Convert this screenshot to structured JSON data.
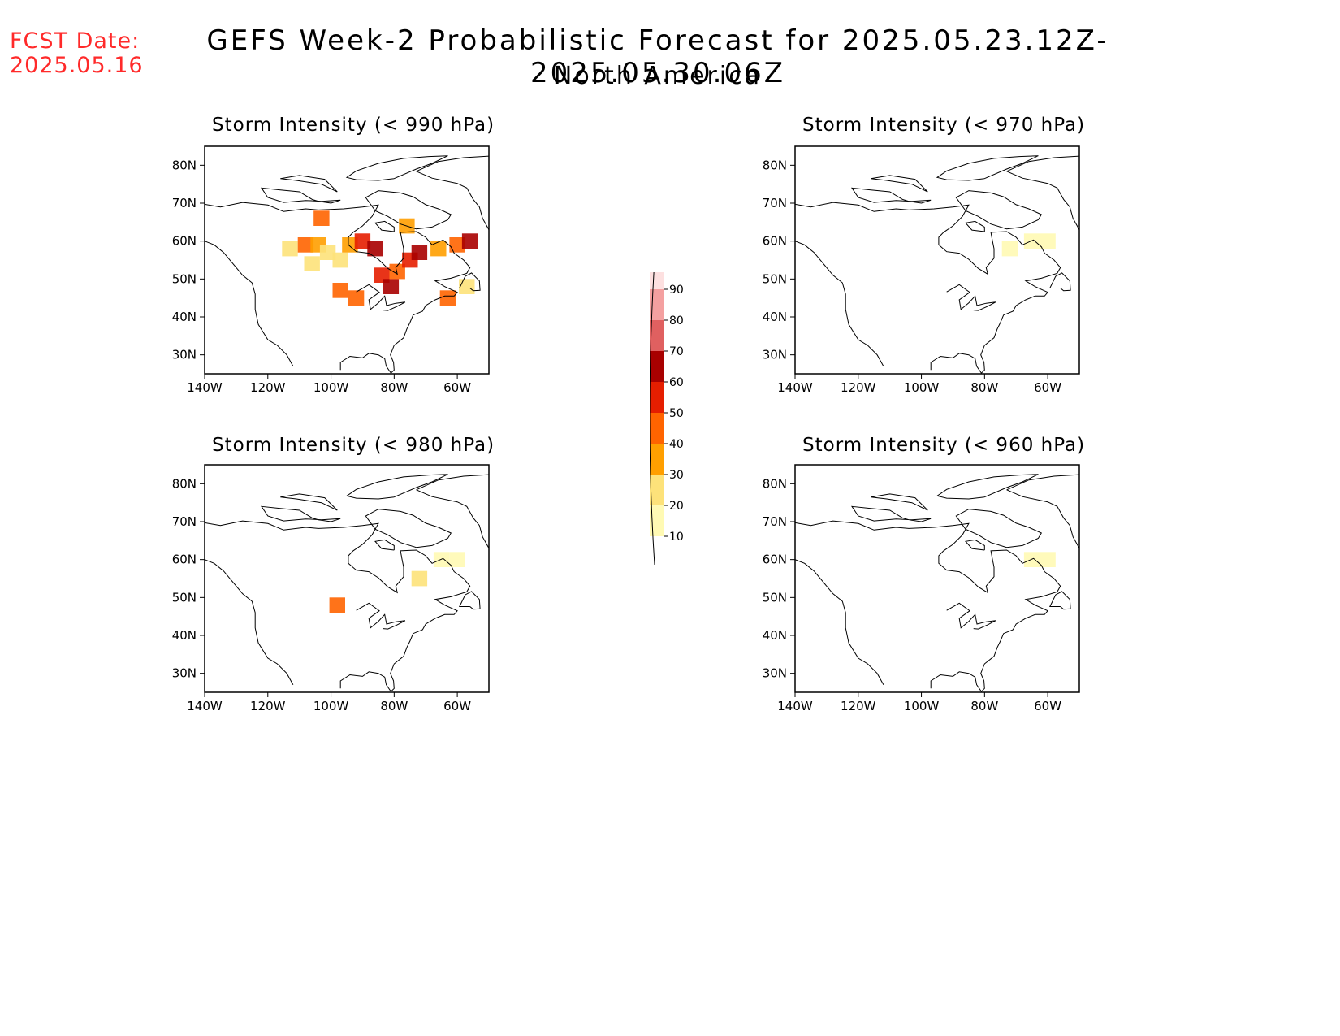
{
  "header": {
    "fcst_label": "FCST Date:",
    "fcst_value": "2025.05.16",
    "title": "GEFS Week-2 Probabilistic Forecast for 2025.05.23.12Z-2025.05.30.06Z",
    "subtitle": "North America"
  },
  "colors": {
    "fcst_text": "#ff2a2a",
    "levels": [
      "#fffab4",
      "#fde27a",
      "#ff9f00",
      "#ff6400",
      "#e51e00",
      "#a80000",
      "#e06060",
      "#f4a0a0",
      "#fde0e0"
    ]
  },
  "colorbar": {
    "labels": [
      "10",
      "20",
      "30",
      "40",
      "50",
      "60",
      "70",
      "80",
      "90"
    ]
  },
  "axes": {
    "lat_labels": [
      "30N",
      "40N",
      "50N",
      "60N",
      "70N",
      "80N"
    ],
    "lon_labels": [
      "140W",
      "120W",
      "100W",
      "80W",
      "60W"
    ]
  },
  "panels": [
    {
      "title": "Storm Intensity (< 990 hPa)"
    },
    {
      "title": "Storm Intensity (< 970 hPa)"
    },
    {
      "title": "Storm Intensity (< 980 hPa)"
    },
    {
      "title": "Storm Intensity (< 960 hPa)"
    }
  ],
  "chart_data": [
    {
      "type": "heatmap",
      "title": "Storm Intensity (< 990 hPa)",
      "xlim": [
        -140,
        -50
      ],
      "ylim": [
        25,
        85
      ],
      "cells": [
        {
          "lon": -113,
          "lat": 58,
          "p": 20
        },
        {
          "lon": -108,
          "lat": 59,
          "p": 40
        },
        {
          "lon": -104,
          "lat": 59,
          "p": 30
        },
        {
          "lon": -101,
          "lat": 57,
          "p": 20
        },
        {
          "lon": -97,
          "lat": 55,
          "p": 20
        },
        {
          "lon": -94,
          "lat": 59,
          "p": 30
        },
        {
          "lon": -90,
          "lat": 60,
          "p": 50
        },
        {
          "lon": -86,
          "lat": 58,
          "p": 60
        },
        {
          "lon": -84,
          "lat": 51,
          "p": 50
        },
        {
          "lon": -81,
          "lat": 48,
          "p": 60
        },
        {
          "lon": -79,
          "lat": 52,
          "p": 40
        },
        {
          "lon": -75,
          "lat": 55,
          "p": 50
        },
        {
          "lon": -72,
          "lat": 57,
          "p": 60
        },
        {
          "lon": -66,
          "lat": 58,
          "p": 30
        },
        {
          "lon": -60,
          "lat": 59,
          "p": 40
        },
        {
          "lon": -56,
          "lat": 60,
          "p": 60
        },
        {
          "lon": -76,
          "lat": 64,
          "p": 30
        },
        {
          "lon": -103,
          "lat": 66,
          "p": 40
        },
        {
          "lon": -106,
          "lat": 54,
          "p": 20
        },
        {
          "lon": -97,
          "lat": 47,
          "p": 40
        },
        {
          "lon": -92,
          "lat": 45,
          "p": 40
        },
        {
          "lon": -63,
          "lat": 45,
          "p": 40
        },
        {
          "lon": -57,
          "lat": 48,
          "p": 20
        }
      ]
    },
    {
      "type": "heatmap",
      "title": "Storm Intensity (< 970 hPa)",
      "xlim": [
        -140,
        -50
      ],
      "ylim": [
        25,
        85
      ],
      "cells": [
        {
          "lon": -65,
          "lat": 60,
          "p": 10
        },
        {
          "lon": -60,
          "lat": 60,
          "p": 10
        },
        {
          "lon": -72,
          "lat": 58,
          "p": 10
        }
      ]
    },
    {
      "type": "heatmap",
      "title": "Storm Intensity (< 980 hPa)",
      "xlim": [
        -140,
        -50
      ],
      "ylim": [
        25,
        85
      ],
      "cells": [
        {
          "lon": -98,
          "lat": 48,
          "p": 40
        },
        {
          "lon": -72,
          "lat": 55,
          "p": 20
        },
        {
          "lon": -65,
          "lat": 60,
          "p": 10
        },
        {
          "lon": -60,
          "lat": 60,
          "p": 10
        }
      ]
    },
    {
      "type": "heatmap",
      "title": "Storm Intensity (< 960 hPa)",
      "xlim": [
        -140,
        -50
      ],
      "ylim": [
        25,
        85
      ],
      "cells": [
        {
          "lon": -65,
          "lat": 60,
          "p": 10
        },
        {
          "lon": -60,
          "lat": 60,
          "p": 10
        }
      ]
    }
  ]
}
